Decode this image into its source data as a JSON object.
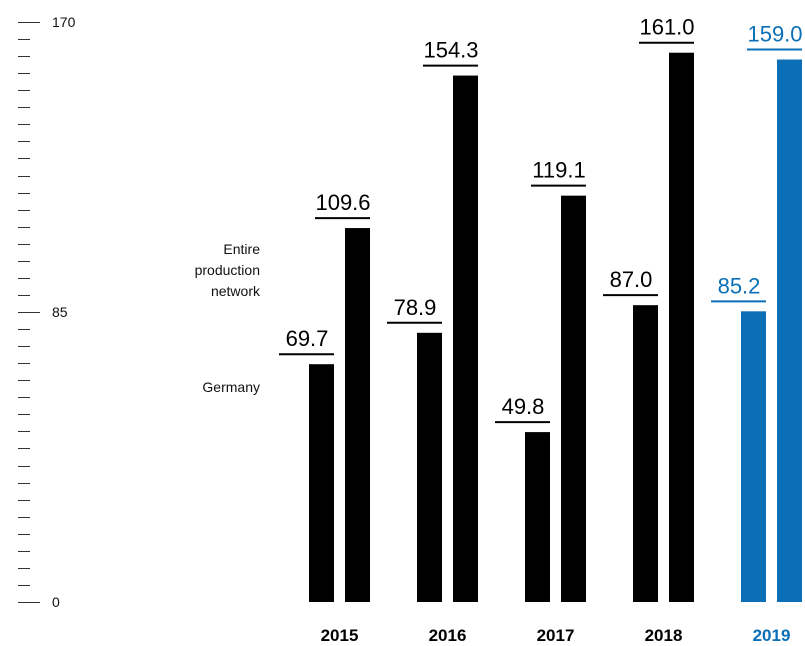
{
  "colors": {
    "bar": "#000000",
    "highlight": "#0a6fb7",
    "tick": "#333333"
  },
  "legend": {
    "entire_line1": "Entire",
    "entire_line2": "production",
    "entire_line3": "network",
    "germany": "Germany"
  },
  "chart_data": {
    "type": "bar",
    "categories": [
      "2015",
      "2016",
      "2017",
      "2018",
      "2019"
    ],
    "highlight_category": "2019",
    "series": [
      {
        "name": "Germany",
        "values": [
          69.7,
          78.9,
          49.8,
          87.0,
          85.2
        ]
      },
      {
        "name": "Entire production network",
        "values": [
          109.6,
          154.3,
          119.1,
          161.0,
          159.0
        ]
      }
    ],
    "value_labels": [
      [
        "69.7",
        "78.9",
        "49.8",
        "87.0",
        "85.2"
      ],
      [
        "109.6",
        "154.3",
        "119.1",
        "161.0",
        "159.0"
      ]
    ],
    "ylim": [
      0,
      170
    ],
    "yticks": [
      "0",
      "85",
      "170"
    ],
    "title": "",
    "xlabel": "",
    "ylabel": ""
  }
}
